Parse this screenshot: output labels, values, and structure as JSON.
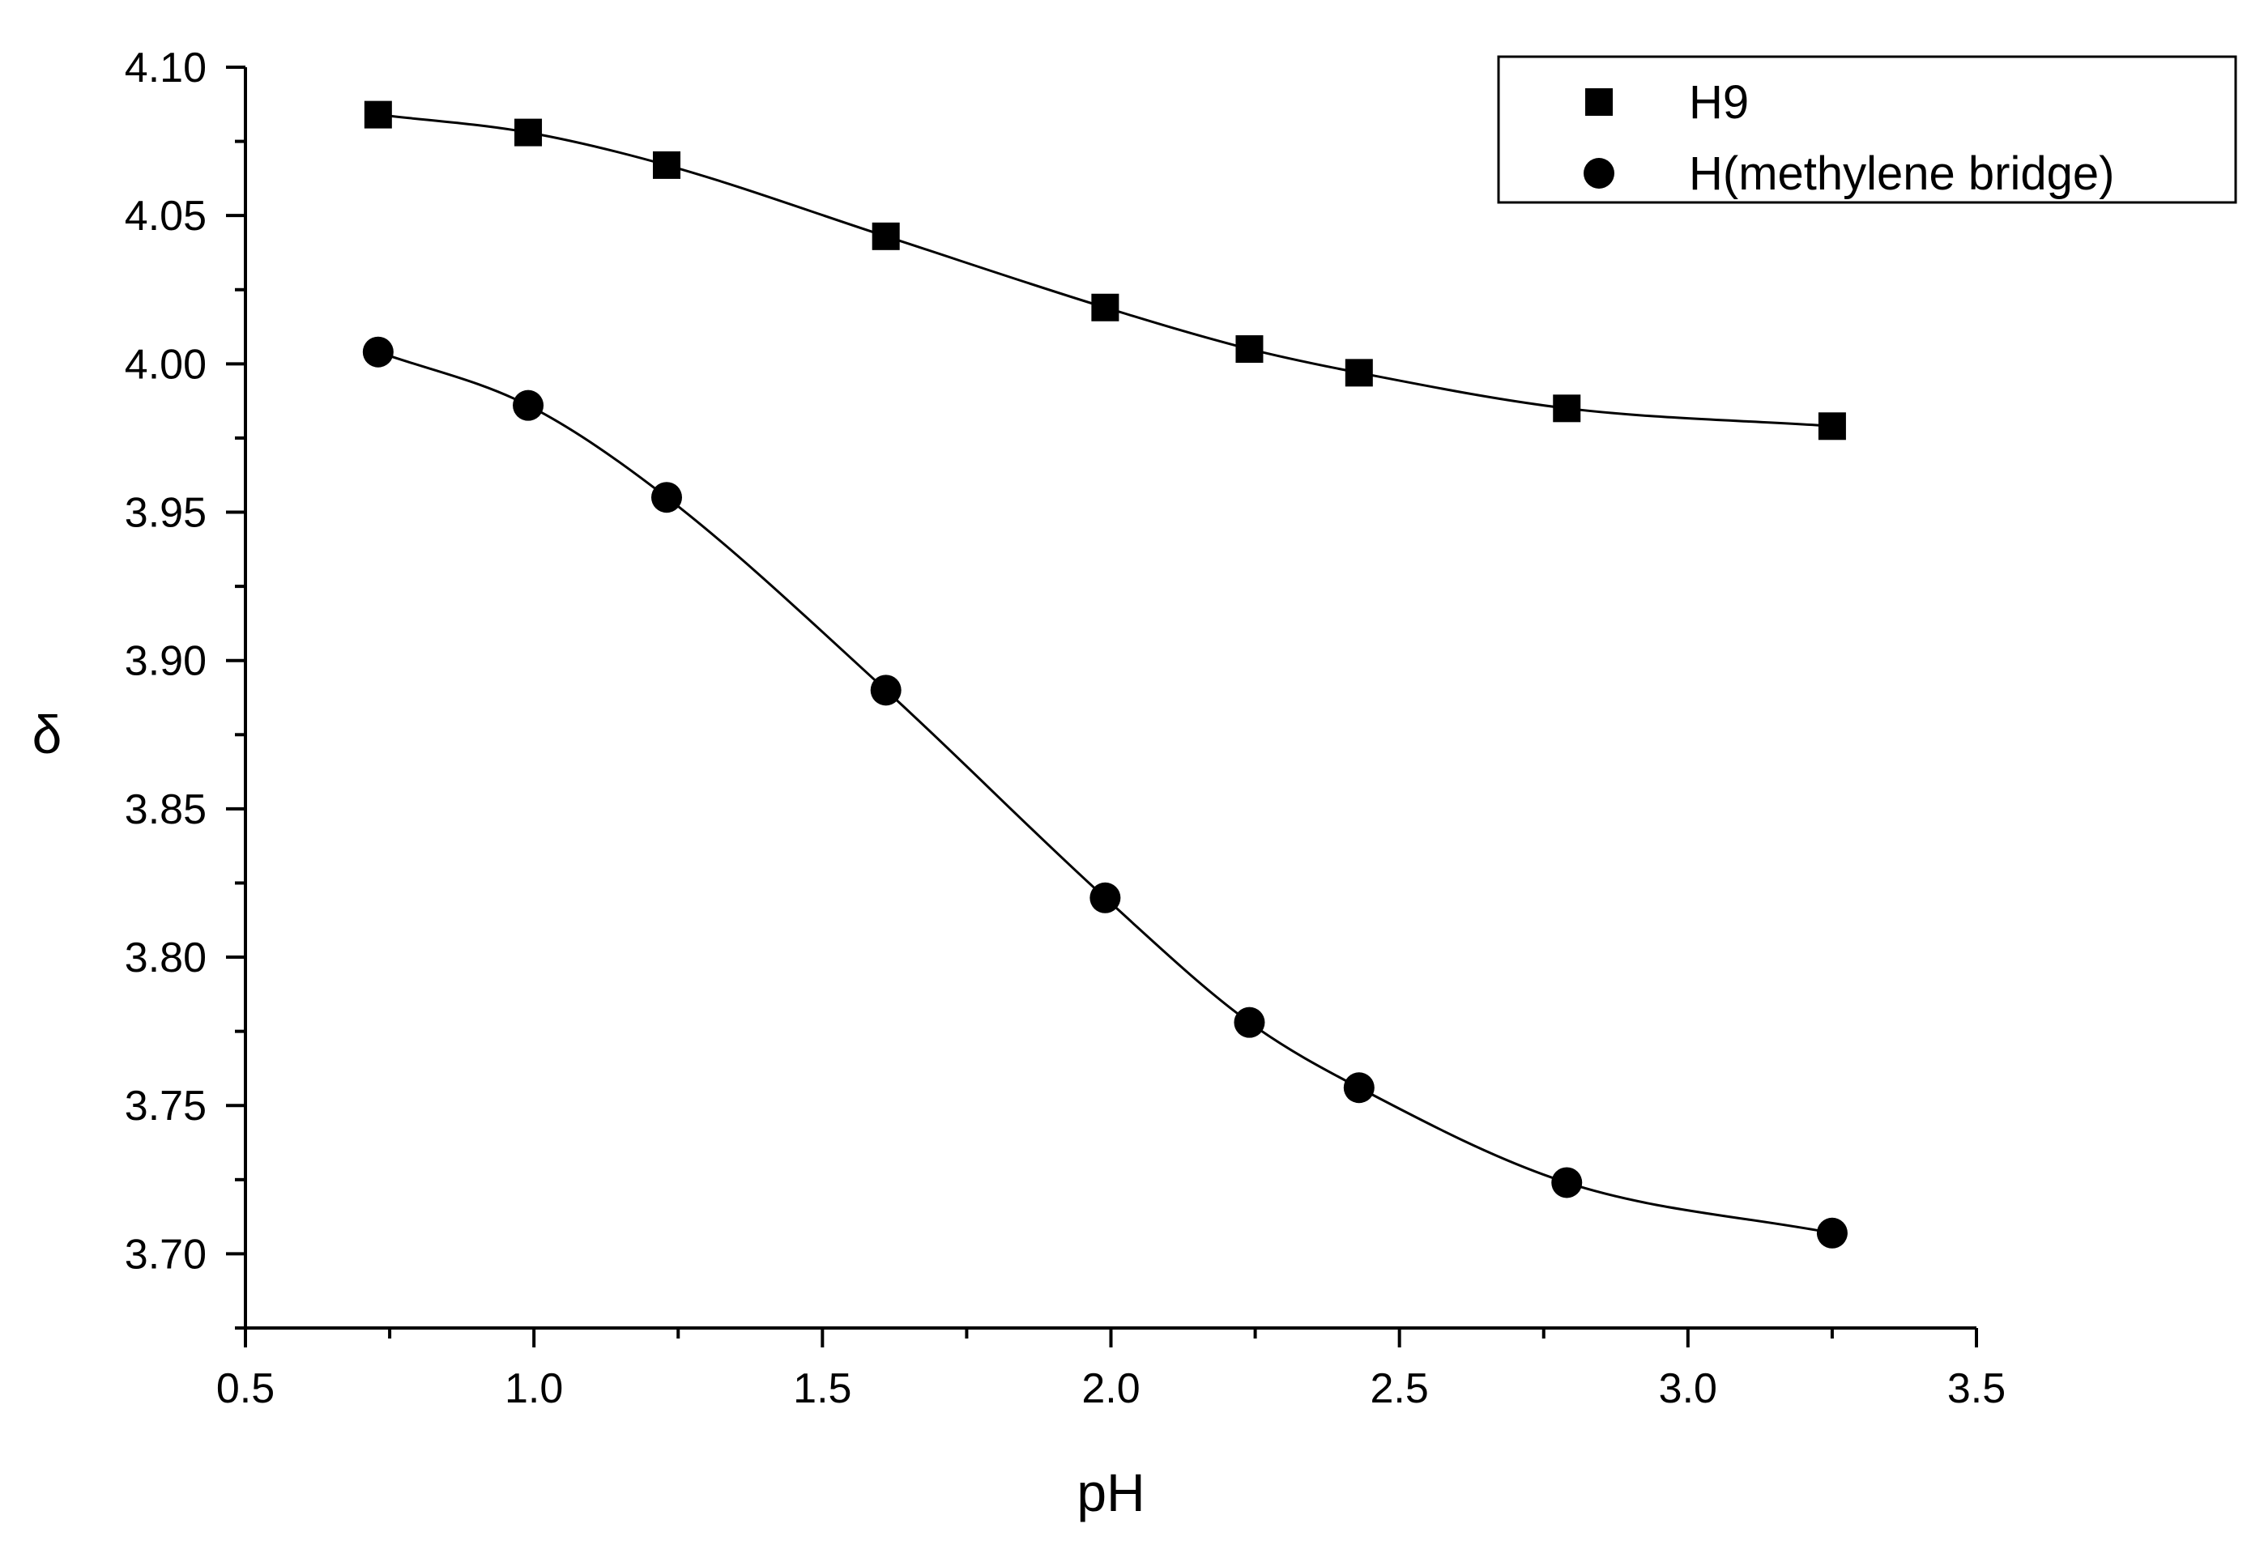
{
  "chart_data": {
    "type": "scatter",
    "title": "",
    "xlabel": "pH",
    "ylabel": "δ",
    "xlim": [
      0.5,
      3.5
    ],
    "ylim": [
      3.675,
      4.1
    ],
    "xticks": [
      "0.5",
      "1.0",
      "1.5",
      "2.0",
      "2.5",
      "3.0",
      "3.5"
    ],
    "yticks": [
      "3.70",
      "3.75",
      "3.80",
      "3.85",
      "3.90",
      "3.95",
      "4.00",
      "4.05",
      "4.10"
    ],
    "grid": false,
    "legend_position": "top-right",
    "series": [
      {
        "name": "H9",
        "marker": "square",
        "x": [
          0.73,
          0.99,
          1.23,
          1.61,
          1.99,
          2.24,
          2.43,
          2.79,
          3.25
        ],
        "y": [
          4.084,
          4.078,
          4.067,
          4.043,
          4.019,
          4.005,
          3.997,
          3.985,
          3.979
        ]
      },
      {
        "name": "H(methylene bridge)",
        "marker": "circle",
        "x": [
          0.73,
          0.99,
          1.23,
          1.61,
          1.99,
          2.24,
          2.43,
          2.79,
          3.25
        ],
        "y": [
          4.004,
          3.986,
          3.955,
          3.89,
          3.82,
          3.778,
          3.756,
          3.724,
          3.707
        ]
      }
    ]
  }
}
